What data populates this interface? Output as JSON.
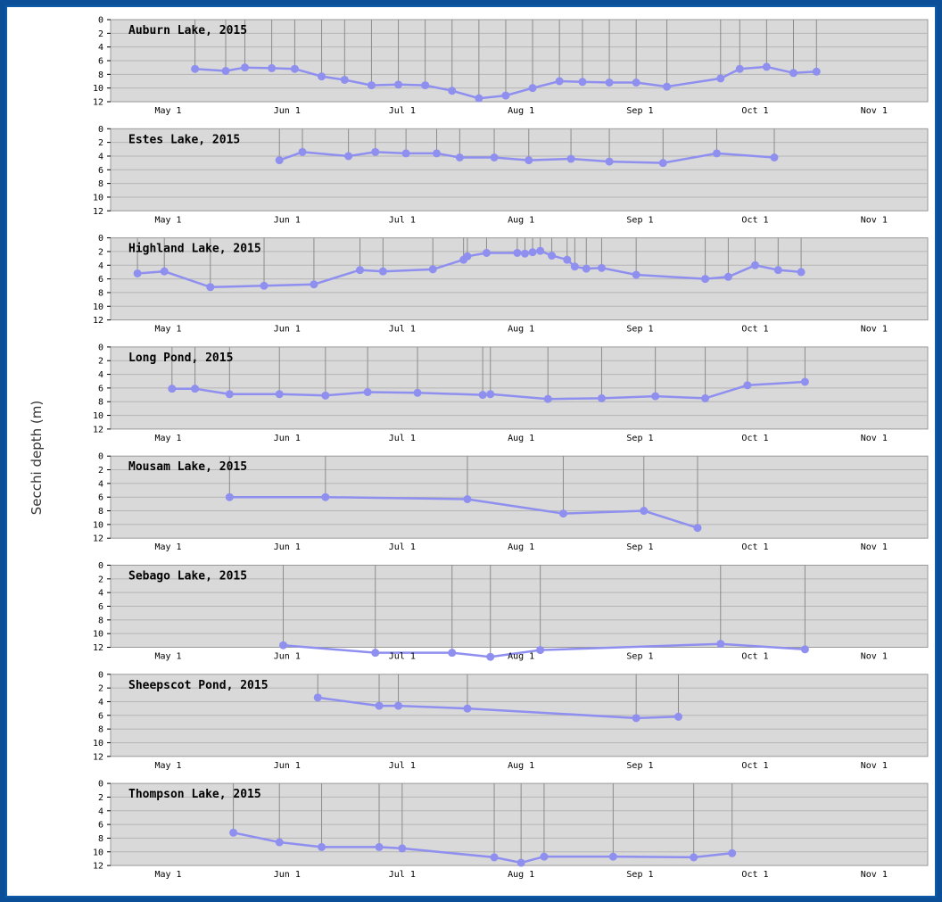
{
  "chart_data": {
    "type": "line",
    "ylabel": "Secchi depth (m)",
    "ylim": [
      0,
      12
    ],
    "y_ticks": [
      "0",
      "2",
      "4",
      "6",
      "8",
      "10",
      "12"
    ],
    "x_ticks": [
      {
        "label": "May 1",
        "date": "2015-05-01"
      },
      {
        "label": "Jun 1",
        "date": "2015-06-01"
      },
      {
        "label": "Jul 1",
        "date": "2015-07-01"
      },
      {
        "label": "Aug 1",
        "date": "2015-08-01"
      },
      {
        "label": "Sep 1",
        "date": "2015-09-01"
      },
      {
        "label": "Oct 1",
        "date": "2015-10-01"
      },
      {
        "label": "Nov 1",
        "date": "2015-11-01"
      }
    ],
    "xlim": [
      "2015-04-16",
      "2015-11-15"
    ],
    "y_inverted": true,
    "grid": true,
    "panels": [
      {
        "title": "Auburn Lake, 2015",
        "points": [
          {
            "x": "2015-05-08",
            "y": 7.2
          },
          {
            "x": "2015-05-16",
            "y": 7.5
          },
          {
            "x": "2015-05-21",
            "y": 7.0
          },
          {
            "x": "2015-05-28",
            "y": 7.1
          },
          {
            "x": "2015-06-03",
            "y": 7.2
          },
          {
            "x": "2015-06-10",
            "y": 8.3
          },
          {
            "x": "2015-06-16",
            "y": 8.8
          },
          {
            "x": "2015-06-23",
            "y": 9.6
          },
          {
            "x": "2015-06-30",
            "y": 9.5
          },
          {
            "x": "2015-07-07",
            "y": 9.6
          },
          {
            "x": "2015-07-14",
            "y": 10.4
          },
          {
            "x": "2015-07-21",
            "y": 11.5
          },
          {
            "x": "2015-07-28",
            "y": 11.1
          },
          {
            "x": "2015-08-04",
            "y": 10.0
          },
          {
            "x": "2015-08-11",
            "y": 9.0
          },
          {
            "x": "2015-08-17",
            "y": 9.1
          },
          {
            "x": "2015-08-24",
            "y": 9.2
          },
          {
            "x": "2015-08-31",
            "y": 9.2
          },
          {
            "x": "2015-09-08",
            "y": 9.8
          },
          {
            "x": "2015-09-22",
            "y": 8.6
          },
          {
            "x": "2015-09-27",
            "y": 7.2
          },
          {
            "x": "2015-10-04",
            "y": 6.9
          },
          {
            "x": "2015-10-11",
            "y": 7.8
          },
          {
            "x": "2015-10-17",
            "y": 7.6
          }
        ]
      },
      {
        "title": "Estes Lake, 2015",
        "points": [
          {
            "x": "2015-05-30",
            "y": 4.6
          },
          {
            "x": "2015-06-05",
            "y": 3.4
          },
          {
            "x": "2015-06-17",
            "y": 4.0
          },
          {
            "x": "2015-06-24",
            "y": 3.4
          },
          {
            "x": "2015-07-02",
            "y": 3.6
          },
          {
            "x": "2015-07-10",
            "y": 3.6
          },
          {
            "x": "2015-07-16",
            "y": 4.2
          },
          {
            "x": "2015-07-25",
            "y": 4.2
          },
          {
            "x": "2015-08-03",
            "y": 4.6
          },
          {
            "x": "2015-08-14",
            "y": 4.4
          },
          {
            "x": "2015-08-24",
            "y": 4.8
          },
          {
            "x": "2015-09-07",
            "y": 5.0
          },
          {
            "x": "2015-09-21",
            "y": 3.6
          },
          {
            "x": "2015-10-06",
            "y": 4.2
          }
        ]
      },
      {
        "title": "Highland Lake, 2015",
        "points": [
          {
            "x": "2015-04-23",
            "y": 5.2
          },
          {
            "x": "2015-04-30",
            "y": 4.9
          },
          {
            "x": "2015-05-12",
            "y": 7.2
          },
          {
            "x": "2015-05-26",
            "y": 7.0
          },
          {
            "x": "2015-06-08",
            "y": 6.8
          },
          {
            "x": "2015-06-20",
            "y": 4.7
          },
          {
            "x": "2015-06-26",
            "y": 4.9
          },
          {
            "x": "2015-07-09",
            "y": 4.6
          },
          {
            "x": "2015-07-17",
            "y": 3.2
          },
          {
            "x": "2015-07-18",
            "y": 2.7
          },
          {
            "x": "2015-07-23",
            "y": 2.2
          },
          {
            "x": "2015-07-31",
            "y": 2.2
          },
          {
            "x": "2015-08-02",
            "y": 2.3
          },
          {
            "x": "2015-08-04",
            "y": 2.1
          },
          {
            "x": "2015-08-06",
            "y": 1.9
          },
          {
            "x": "2015-08-09",
            "y": 2.6
          },
          {
            "x": "2015-08-13",
            "y": 3.2
          },
          {
            "x": "2015-08-15",
            "y": 4.2
          },
          {
            "x": "2015-08-18",
            "y": 4.5
          },
          {
            "x": "2015-08-22",
            "y": 4.4
          },
          {
            "x": "2015-08-31",
            "y": 5.4
          },
          {
            "x": "2015-09-18",
            "y": 6.0
          },
          {
            "x": "2015-09-24",
            "y": 5.7
          },
          {
            "x": "2015-10-01",
            "y": 4.0
          },
          {
            "x": "2015-10-07",
            "y": 4.7
          },
          {
            "x": "2015-10-13",
            "y": 5.0
          }
        ]
      },
      {
        "title": "Long Pond, 2015",
        "points": [
          {
            "x": "2015-05-02",
            "y": 6.1
          },
          {
            "x": "2015-05-08",
            "y": 6.1
          },
          {
            "x": "2015-05-17",
            "y": 6.9
          },
          {
            "x": "2015-05-30",
            "y": 6.9
          },
          {
            "x": "2015-06-11",
            "y": 7.1
          },
          {
            "x": "2015-06-22",
            "y": 6.6
          },
          {
            "x": "2015-07-05",
            "y": 6.7
          },
          {
            "x": "2015-07-22",
            "y": 7.0
          },
          {
            "x": "2015-07-24",
            "y": 6.9
          },
          {
            "x": "2015-08-08",
            "y": 7.6
          },
          {
            "x": "2015-08-22",
            "y": 7.5
          },
          {
            "x": "2015-09-05",
            "y": 7.2
          },
          {
            "x": "2015-09-18",
            "y": 7.5
          },
          {
            "x": "2015-09-29",
            "y": 5.6
          },
          {
            "x": "2015-10-14",
            "y": 5.1
          }
        ]
      },
      {
        "title": "Mousam Lake, 2015",
        "points": [
          {
            "x": "2015-05-17",
            "y": 6.0
          },
          {
            "x": "2015-06-11",
            "y": 6.0
          },
          {
            "x": "2015-07-18",
            "y": 6.3
          },
          {
            "x": "2015-08-12",
            "y": 8.4
          },
          {
            "x": "2015-09-02",
            "y": 8.0
          },
          {
            "x": "2015-09-16",
            "y": 10.5
          }
        ]
      },
      {
        "title": "Sebago Lake, 2015",
        "points": [
          {
            "x": "2015-05-31",
            "y": 11.7
          },
          {
            "x": "2015-06-24",
            "y": 12.8
          },
          {
            "x": "2015-07-14",
            "y": 12.8
          },
          {
            "x": "2015-07-24",
            "y": 13.4
          },
          {
            "x": "2015-08-06",
            "y": 12.4
          },
          {
            "x": "2015-09-22",
            "y": 11.5
          },
          {
            "x": "2015-10-14",
            "y": 12.3
          }
        ]
      },
      {
        "title": "Sheepscot Pond, 2015",
        "points": [
          {
            "x": "2015-06-09",
            "y": 3.4
          },
          {
            "x": "2015-06-25",
            "y": 4.6
          },
          {
            "x": "2015-06-30",
            "y": 4.6
          },
          {
            "x": "2015-07-18",
            "y": 5.0
          },
          {
            "x": "2015-08-31",
            "y": 6.4
          },
          {
            "x": "2015-09-11",
            "y": 6.2
          }
        ]
      },
      {
        "title": "Thompson Lake, 2015",
        "points": [
          {
            "x": "2015-05-18",
            "y": 7.2
          },
          {
            "x": "2015-05-30",
            "y": 8.6
          },
          {
            "x": "2015-06-10",
            "y": 9.3
          },
          {
            "x": "2015-06-25",
            "y": 9.3
          },
          {
            "x": "2015-07-01",
            "y": 9.5
          },
          {
            "x": "2015-07-25",
            "y": 10.8
          },
          {
            "x": "2015-08-01",
            "y": 11.6
          },
          {
            "x": "2015-08-07",
            "y": 10.7
          },
          {
            "x": "2015-08-25",
            "y": 10.7
          },
          {
            "x": "2015-09-15",
            "y": 10.8
          },
          {
            "x": "2015-09-25",
            "y": 10.2
          }
        ]
      }
    ]
  }
}
